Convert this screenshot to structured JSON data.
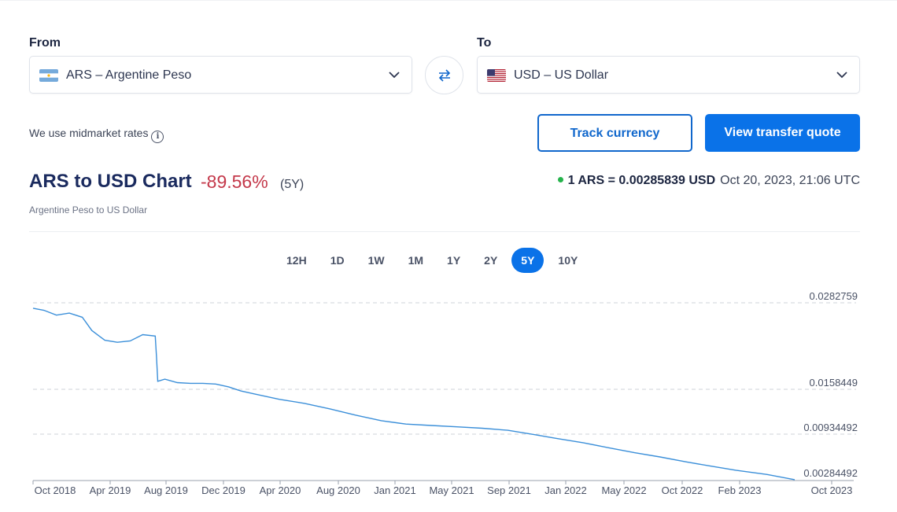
{
  "from": {
    "label": "From",
    "value": "ARS – Argentine Peso",
    "flag": "argentina-flag"
  },
  "to": {
    "label": "To",
    "value": "USD – US Dollar",
    "flag": "us-flag"
  },
  "swap_icon": "swap-arrows-icon",
  "midmarket_text": "We use midmarket rates",
  "info_icon": "i",
  "buttons": {
    "track": "Track currency",
    "quote": "View transfer quote"
  },
  "header": {
    "title": "ARS to USD Chart",
    "change": "-89.56%",
    "period": "(5Y)",
    "subtitle": "Argentine Peso to US Dollar"
  },
  "rate": {
    "value": "1 ARS = 0.00285839 USD",
    "timestamp": "Oct 20, 2023, 21:06 UTC",
    "status_color": "#25b34b"
  },
  "ranges": [
    "12H",
    "1D",
    "1W",
    "1M",
    "1Y",
    "2Y",
    "5Y",
    "10Y"
  ],
  "active_range": "5Y",
  "colors": {
    "accent": "#0a72e8",
    "negative": "#c4384a",
    "line": "#3b8fd9"
  },
  "chart_data": {
    "type": "line",
    "x_tick_labels": [
      "Oct 2018",
      "Apr 2019",
      "Aug 2019",
      "Dec 2019",
      "Apr 2020",
      "Aug 2020",
      "Jan 2021",
      "May 2021",
      "Sep 2021",
      "Jan 2022",
      "May 2022",
      "Oct 2022",
      "Feb 2023",
      "Oct 2023"
    ],
    "y_tick_labels": [
      "0.0282759",
      "0.0158449",
      "0.00934492",
      "0.00284492"
    ],
    "y_ticks": [
      0.0282759,
      0.0158449,
      0.00934492,
      0.00284492
    ],
    "grid": "horizontal-dashed",
    "series": [
      {
        "x": [
          "2018-10-20",
          "2018-11-15",
          "2018-12-15",
          "2019-01-15",
          "2019-02-15",
          "2019-03-10",
          "2019-04-10",
          "2019-05-10",
          "2019-06-10",
          "2019-07-10",
          "2019-08-09",
          "2019-08-12",
          "2019-08-15",
          "2019-09-01",
          "2019-10-01",
          "2019-11-01",
          "2019-12-01",
          "2020-01-01",
          "2020-02-01",
          "2020-03-01",
          "2020-04-01",
          "2020-06-01",
          "2020-08-01",
          "2020-10-01",
          "2020-12-01",
          "2021-02-01",
          "2021-04-01",
          "2021-06-01",
          "2021-08-01",
          "2021-10-01",
          "2021-12-01",
          "2022-02-01",
          "2022-04-01",
          "2022-06-01",
          "2022-08-01",
          "2022-10-01",
          "2022-12-01",
          "2023-02-01",
          "2023-04-01",
          "2023-06-01",
          "2023-08-15",
          "2023-10-20"
        ],
        "y": [
          0.0275,
          0.0272,
          0.0265,
          0.0268,
          0.0262,
          0.0243,
          0.0229,
          0.0226,
          0.0228,
          0.0237,
          0.0235,
          0.0205,
          0.017,
          0.0173,
          0.0168,
          0.0167,
          0.0167,
          0.0166,
          0.0162,
          0.0156,
          0.0152,
          0.0144,
          0.0138,
          0.013,
          0.0121,
          0.0113,
          0.0108,
          0.0106,
          0.0104,
          0.0102,
          0.0099,
          0.0093,
          0.0087,
          0.0081,
          0.0074,
          0.0067,
          0.0061,
          0.0054,
          0.0048,
          0.0042,
          0.0036,
          0.00286
        ]
      }
    ]
  }
}
